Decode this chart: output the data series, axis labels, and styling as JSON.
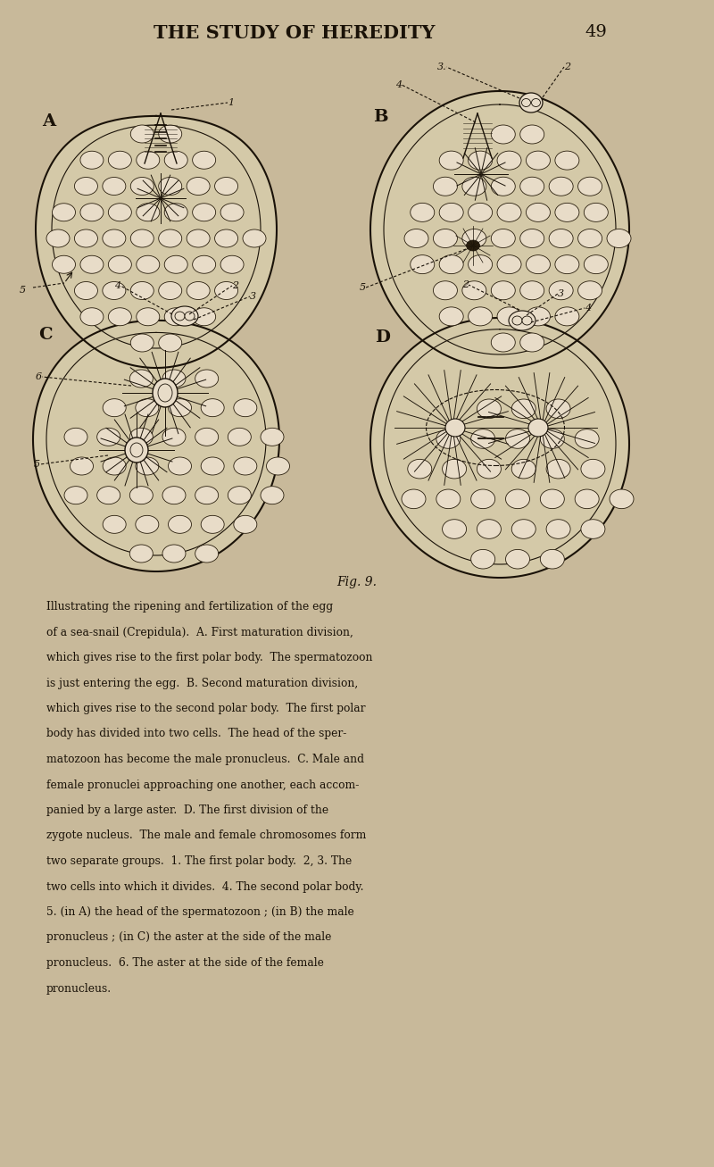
{
  "bg_color": "#c8b99a",
  "page_bg": "#c8b99a",
  "title": "THE STUDY OF HEREDITY",
  "page_num": "49",
  "fig_label": "Fig. 9.",
  "caption_lines": [
    "Illustrating the ripening and fertilization of the egg",
    "of a sea-snail (Crepidula).  A. First maturation division,",
    "which gives rise to the first polar body.  The spermatozoon",
    "is just entering the egg.  B. Second maturation division,",
    "which gives rise to the second polar body.  The first polar",
    "body has divided into two cells.  The head of the sper-",
    "matozoon has become the male pronucleus.  C. Male and",
    "female pronuclei approaching one another, each accom-",
    "panied by a large aster.  D. The first division of the",
    "zygote nucleus.  The male and female chromosomes form",
    "two separate groups.  1. The first polar body.  2, 3. The",
    "two cells into which it divides.  4. The second polar body.",
    "5. (in A) the head of the spermatozoon ; (in B) the male",
    "pronucleus ; (in C) the aster at the side of the male",
    "pronucleus.  6. The aster at the side of the female",
    "pronucleus."
  ],
  "ink_color": "#1a1208",
  "egg_outline_color": "#2a1f0e",
  "cell_color": "#e8dcc8",
  "cell_outline": "#2a1f0e"
}
